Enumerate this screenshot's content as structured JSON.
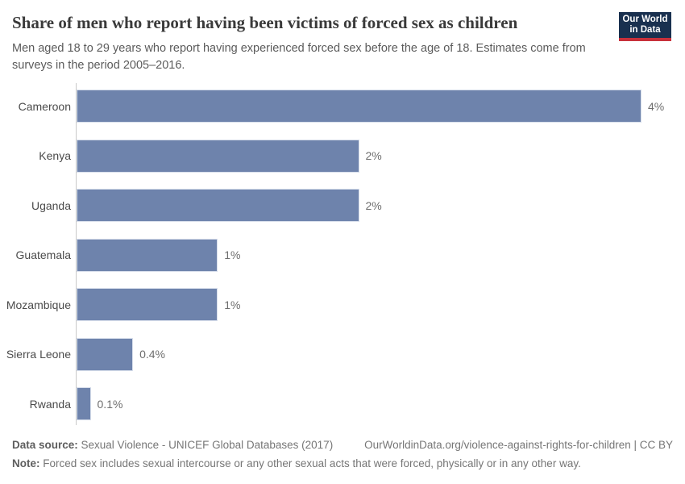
{
  "header": {
    "title": "Share of men who report having been victims of forced sex as children",
    "subtitle_line1": "Men aged 18 to 29 years who report having experienced forced sex before the age of 18. Estimates come from",
    "subtitle_line2": "surveys in the period 2005–2016.",
    "logo": {
      "line1": "Our World",
      "line2": "in Data",
      "bg_color": "#19304f",
      "accent_color": "#c8303a"
    }
  },
  "chart_data": {
    "type": "bar",
    "orientation": "horizontal",
    "title": "Share of men who report having been victims of forced sex as children",
    "subtitle": "Men aged 18 to 29 years who report having experienced forced sex before the age of 18. Estimates come from surveys in the period 2005–2016.",
    "categories": [
      "Cameroon",
      "Kenya",
      "Uganda",
      "Guatemala",
      "Mozambique",
      "Sierra Leone",
      "Rwanda"
    ],
    "values": [
      4,
      2,
      2,
      1,
      1,
      0.4,
      0.1
    ],
    "value_labels": [
      "4%",
      "2%",
      "2%",
      "1%",
      "1%",
      "0.4%",
      "0.1%"
    ],
    "unit": "%",
    "xlim": [
      0,
      4
    ],
    "grid": false,
    "legend": "none",
    "bar_color": "#6e83ac",
    "bar_border_color": "#d7deeb",
    "axis_color": "#c9c9c9"
  },
  "footer": {
    "datasource_label": "Data source:",
    "datasource_value": " Sexual Violence - UNICEF Global Databases (2017)",
    "link": "OurWorldinData.org/violence-against-rights-for-children | CC BY",
    "note_label": "Note:",
    "note_value": " Forced sex includes sexual intercourse or any other sexual acts that were forced, physically or in any other way."
  }
}
